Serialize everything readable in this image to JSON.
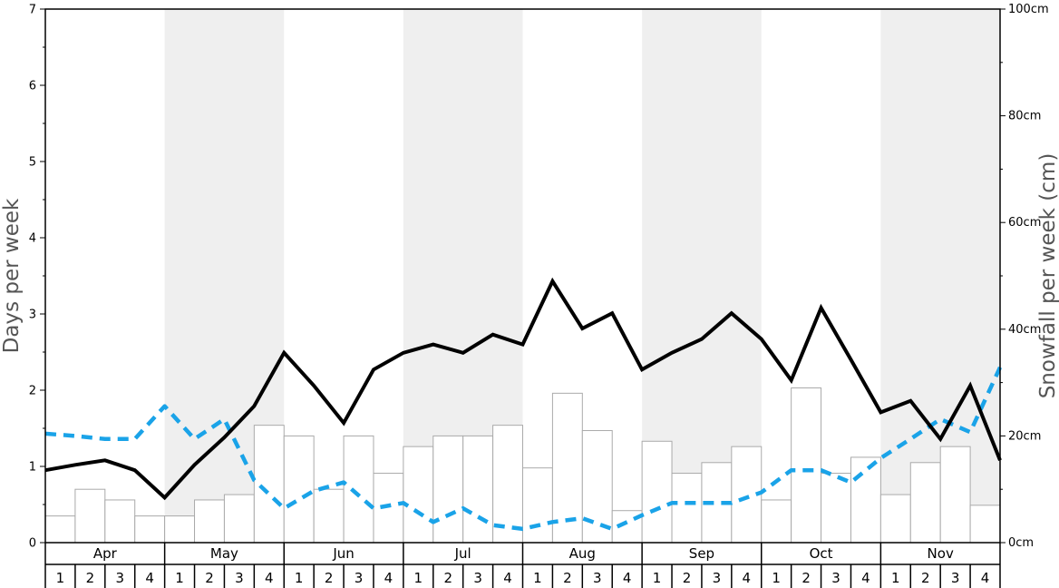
{
  "chart_data": {
    "type": "bar+line",
    "ylabel": "Days per week",
    "y2label": "Snowfall per week (cm)",
    "ylim": [
      0,
      7
    ],
    "y_ticks": [
      "0",
      "1",
      "2",
      "3",
      "4",
      "5",
      "6",
      "7"
    ],
    "y2lim": [
      0,
      100
    ],
    "y2_ticks": [
      "0cm",
      "20cm",
      "40cm",
      "60cm",
      "80cm",
      "100cm"
    ],
    "months": [
      "Apr",
      "May",
      "Jun",
      "Jul",
      "Aug",
      "Sep",
      "Oct",
      "Nov"
    ],
    "weeks": [
      "1",
      "2",
      "3",
      "4"
    ],
    "shaded_months": [
      "May",
      "Jul",
      "Sep",
      "Nov"
    ],
    "colors": {
      "shade": "#efefef",
      "bar_fill": "#ffffff",
      "bar_stroke": "#aaaaaa",
      "solid_line": "#000000",
      "dashed_line": "#1aa3e8",
      "axis": "#000000",
      "axis_title": "#555555"
    },
    "series": [
      {
        "style": "bars",
        "axis": "right",
        "unit": "cm",
        "values": [
          5,
          10,
          8,
          5,
          5,
          8,
          9,
          22,
          20,
          10,
          20,
          13,
          18,
          20,
          20,
          22,
          14,
          28,
          21,
          6,
          19,
          13,
          15,
          18,
          8,
          29,
          13,
          16,
          9,
          15,
          18,
          7
        ]
      },
      {
        "style": "solid-line",
        "axis": "left",
        "values": [
          0.95,
          1.02,
          1.08,
          0.95,
          0.59,
          1.02,
          1.38,
          1.79,
          2.49,
          2.06,
          1.57,
          2.27,
          2.49,
          2.6,
          2.49,
          2.73,
          2.6,
          3.43,
          2.81,
          3.01,
          2.27,
          2.49,
          2.67,
          3.01,
          2.67,
          2.13,
          3.08,
          2.4,
          1.71,
          1.86,
          1.36,
          2.06,
          1.08
        ]
      },
      {
        "style": "dashed-line",
        "axis": "left",
        "values": [
          1.43,
          1.4,
          1.36,
          1.36,
          1.79,
          1.36,
          1.62,
          0.82,
          0.45,
          0.68,
          0.79,
          0.45,
          0.52,
          0.27,
          0.45,
          0.23,
          0.18,
          0.27,
          0.32,
          0.18,
          0.36,
          0.52,
          0.52,
          0.52,
          0.66,
          0.95,
          0.95,
          0.79,
          1.11,
          1.36,
          1.62,
          1.45,
          2.3
        ]
      }
    ]
  }
}
